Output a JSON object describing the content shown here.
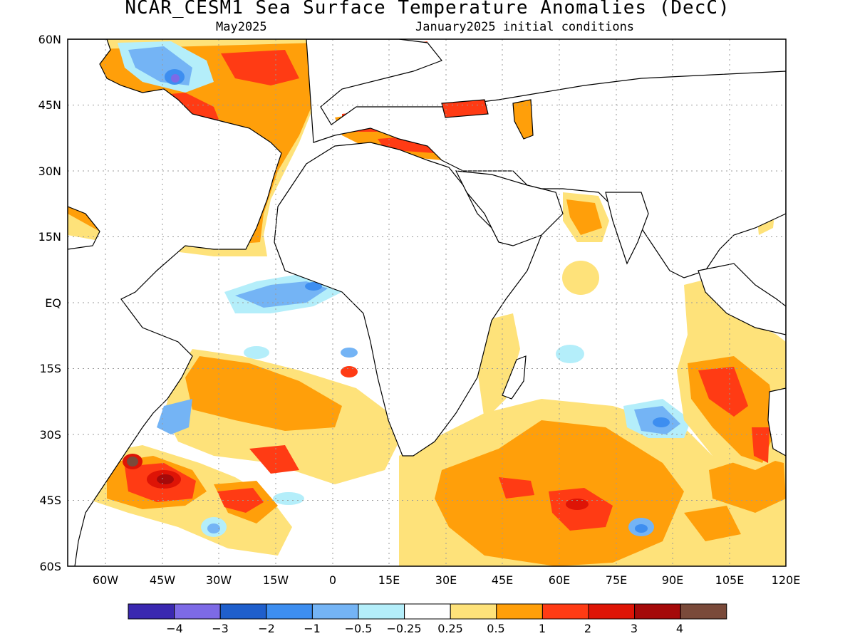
{
  "header": {
    "title": "NCAR_CESM1 Sea Surface Temperature Anomalies (DecC)",
    "target_month": "May2025",
    "init": "January2025 initial conditions"
  },
  "map": {
    "lon_range": [
      -70,
      120
    ],
    "lat_range": [
      -60,
      60
    ],
    "lat_labels": [
      "60N",
      "45N",
      "30N",
      "15N",
      "EQ",
      "15S",
      "30S",
      "45S",
      "60S"
    ],
    "lon_labels": [
      "60W",
      "45W",
      "30W",
      "15W",
      "0",
      "15E",
      "30E",
      "45E",
      "60E",
      "75E",
      "90E",
      "105E",
      "120E"
    ]
  },
  "colorbar": {
    "colors": [
      "#3a28b0",
      "#7d6ae6",
      "#1f5fcc",
      "#3d8ef0",
      "#74b4f5",
      "#b4eefa",
      "#ffffff",
      "#fee27a",
      "#ff9f0a",
      "#ff3b14",
      "#de1406",
      "#a50a0a",
      "#7a4a3a"
    ],
    "labels": [
      "−4",
      "−3",
      "−2",
      "−1",
      "−0.5",
      "−0.25",
      "0.25",
      "0.5",
      "1",
      "2",
      "3",
      "4"
    ]
  }
}
